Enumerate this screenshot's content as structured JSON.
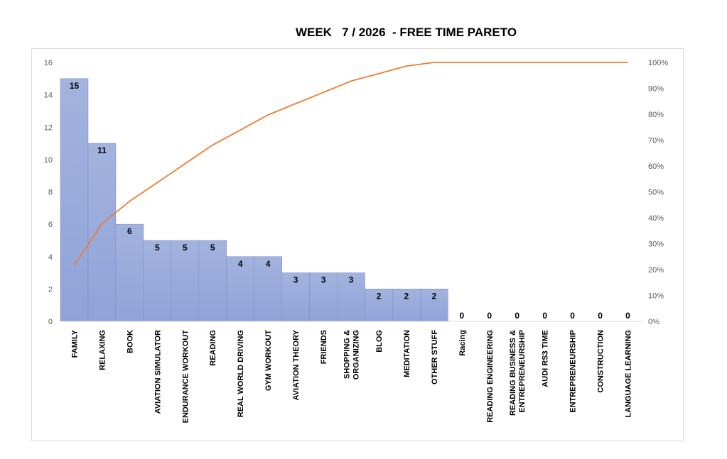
{
  "chart_data": {
    "type": "bar",
    "title": "WEEK   7 / 2026  - FREE TIME PARETO",
    "categories": [
      "FAMILY",
      "RELAXING",
      "BOOK",
      "AVIATION SIMULATOR",
      "ENDURANCE WORKOUT",
      "READING",
      "REAL WORLD DRIVING",
      "GYM WORKOUT",
      "AVIATION THEORY",
      "FRIENDS",
      "SHOPPING & ORGANIZING",
      "BLOG",
      "MEDITATION",
      "OTHER STUFF",
      "Racing",
      "READING ENGINEERING",
      "READING BUSINESS & ENTREPRENEURSHIP",
      "AUDI RS3 TIME",
      "ENTREPRENEURSHIP",
      "CONSTRUCTION",
      "LANGUAGE LEARNING"
    ],
    "category_lines": [
      [
        "FAMILY"
      ],
      [
        "RELAXING"
      ],
      [
        "BOOK"
      ],
      [
        "AVIATION SIMULATOR"
      ],
      [
        "ENDURANCE WORKOUT"
      ],
      [
        "READING"
      ],
      [
        "REAL WORLD DRIVING"
      ],
      [
        "GYM WORKOUT"
      ],
      [
        "AVIATION THEORY"
      ],
      [
        "FRIENDS"
      ],
      [
        "SHOPPING &",
        "ORGANIZING"
      ],
      [
        "BLOG"
      ],
      [
        "MEDITATION"
      ],
      [
        "OTHER STUFF"
      ],
      [
        "Racing"
      ],
      [
        "READING ENGINEERING"
      ],
      [
        "READING BUSINESS &",
        "ENTREPRENEURSHIP"
      ],
      [
        "AUDI RS3 TIME"
      ],
      [
        "ENTREPRENEURSHIP"
      ],
      [
        "CONSTRUCTION"
      ],
      [
        "LANGUAGE LEARNING"
      ]
    ],
    "series": [
      {
        "type": "bar",
        "values": [
          15,
          11,
          6,
          5,
          5,
          5,
          4,
          4,
          3,
          3,
          3,
          2,
          2,
          2,
          0,
          0,
          0,
          0,
          0,
          0,
          0
        ]
      },
      {
        "type": "line",
        "axis": "secondary",
        "values": [
          21.7,
          37.7,
          46.4,
          53.6,
          60.9,
          68.1,
          73.9,
          79.7,
          84.1,
          88.4,
          92.8,
          95.7,
          98.6,
          100,
          100,
          100,
          100,
          100,
          100,
          100,
          100
        ]
      }
    ],
    "ylim": [
      0,
      16
    ],
    "yticks": [
      0,
      2,
      4,
      6,
      8,
      10,
      12,
      14,
      16
    ],
    "y2lim": [
      0,
      100
    ],
    "y2ticks": [
      "0%",
      "10%",
      "20%",
      "30%",
      "40%",
      "50%",
      "60%",
      "70%",
      "80%",
      "90%",
      "100%"
    ],
    "grid": false,
    "legend": "none",
    "colors": {
      "bar": "#8fa3d9",
      "bar_top": "#a3b3df",
      "bar_border": "#7d90c8",
      "line": "#ed7d31"
    }
  }
}
